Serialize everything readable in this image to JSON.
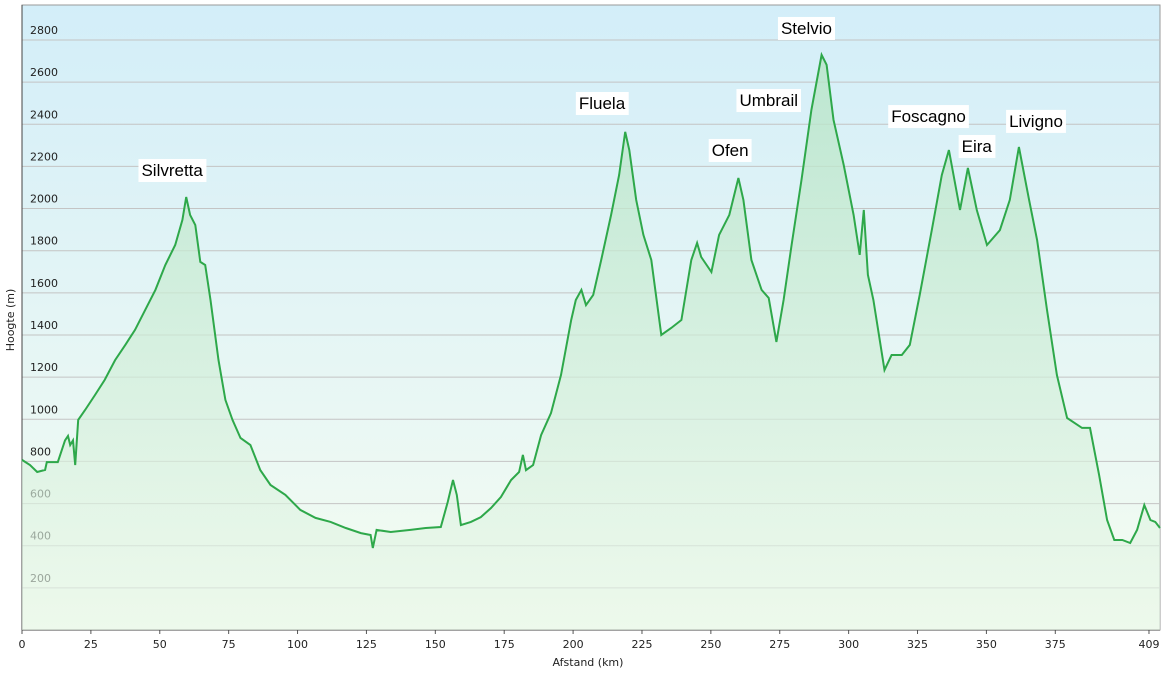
{
  "chart_data": {
    "type": "line",
    "xlabel": "Afstand  (km)",
    "ylabel": "Hoogte (m)",
    "color": "#2ea84a",
    "x": [
      0,
      2.9,
      5.5,
      8.4,
      9,
      13,
      15.6,
      16.7,
      17.5,
      18.5,
      19.3,
      20.4,
      22.9,
      26.5,
      30,
      33.8,
      37.5,
      41,
      44.7,
      48.4,
      52,
      55.6,
      58.2,
      59.6,
      61,
      62.9,
      64.7,
      66.5,
      68.4,
      71.3,
      73.8,
      76.4,
      79.3,
      82.9,
      86.5,
      90.2,
      95.6,
      101,
      106.5,
      112,
      117.5,
      123,
      126.5,
      127.3,
      128.7,
      133.8,
      141,
      146.5,
      152,
      154.5,
      156.4,
      157.8,
      159.3,
      162.9,
      166.5,
      170.2,
      173.8,
      177.5,
      180.4,
      181.8,
      182.9,
      185.5,
      188.4,
      192,
      195.6,
      199.3,
      201,
      203,
      204.7,
      207.3,
      210.2,
      213.8,
      216.7,
      218.9,
      220.4,
      222.9,
      225.5,
      228.4,
      232,
      235.6,
      239.3,
      242.9,
      245,
      246.5,
      250.2,
      253,
      256.7,
      260,
      261.8,
      264.7,
      268.4,
      271,
      273.8,
      276.4,
      279.3,
      282.9,
      286.5,
      290.2,
      292,
      294.5,
      298.2,
      301.8,
      304,
      305.5,
      307,
      309,
      313,
      315.6,
      319.3,
      322.2,
      325.8,
      330.2,
      333.8,
      336.4,
      340.4,
      343.3,
      346.5,
      350.2,
      354.9,
      358.5,
      361.8,
      365.5,
      368.4,
      372,
      375.6,
      379.3,
      384.7,
      387.6,
      390.9,
      393.8,
      396.4,
      399.3,
      402.2,
      404.7,
      407.3,
      409.5,
      411.3,
      413
    ],
    "values": [
      807,
      783,
      750,
      760,
      797,
      797,
      900,
      921,
      878,
      900,
      783,
      997,
      1044,
      1115,
      1187,
      1281,
      1353,
      1424,
      1519,
      1614,
      1732,
      1827,
      1946,
      2055,
      1970,
      1922,
      1747,
      1732,
      1566,
      1281,
      1092,
      997,
      911,
      878,
      759,
      688,
      641,
      570,
      532,
      513,
      484,
      460,
      451,
      389,
      475,
      465,
      475,
      484,
      489,
      607,
      712,
      641,
      498,
      513,
      536,
      579,
      631,
      712,
      750,
      831,
      759,
      783,
      925,
      1030,
      1210,
      1471,
      1566,
      1614,
      1542,
      1590,
      1756,
      1970,
      2159,
      2364,
      2278,
      2041,
      1875,
      1756,
      1400,
      1433,
      1471,
      1756,
      1837,
      1770,
      1699,
      1875,
      1970,
      2145,
      2041,
      1756,
      1614,
      1576,
      1367,
      1566,
      1827,
      2136,
      2468,
      2729,
      2682,
      2421,
      2207,
      1970,
      1780,
      1993,
      1685,
      1566,
      1234,
      1305,
      1305,
      1353,
      1590,
      1898,
      2159,
      2278,
      1993,
      2193,
      1993,
      1827,
      1898,
      2041,
      2292,
      2041,
      1851,
      1519,
      1210,
      1006,
      959,
      959,
      736,
      522,
      427,
      427,
      413,
      475,
      593,
      522,
      513,
      484
    ],
    "xlim": [
      0,
      413
    ],
    "xticks": [
      0,
      25,
      50,
      75,
      100,
      125,
      150,
      175,
      200,
      225,
      250,
      275,
      300,
      325,
      350,
      375,
      409
    ],
    "ylim": [
      0,
      2966
    ],
    "yticks": [
      200,
      400,
      600,
      800,
      1000,
      1200,
      1400,
      1600,
      1800,
      2000,
      2200,
      2400,
      2600,
      2800
    ],
    "grid": true,
    "annotations": [
      {
        "text": "Silvretta",
        "x": 54.5,
        "y": 2183
      },
      {
        "text": "Fluela",
        "x": 210.5,
        "y": 2501
      },
      {
        "text": "Ofen",
        "x": 257,
        "y": 2278
      },
      {
        "text": "Umbrail",
        "x": 271,
        "y": 2515
      },
      {
        "text": "Stelvio",
        "x": 284.7,
        "y": 2857
      },
      {
        "text": "Foscagno",
        "x": 329,
        "y": 2439
      },
      {
        "text": "Eira",
        "x": 346.5,
        "y": 2297
      },
      {
        "text": "Livigno",
        "x": 368,
        "y": 2416
      }
    ]
  }
}
